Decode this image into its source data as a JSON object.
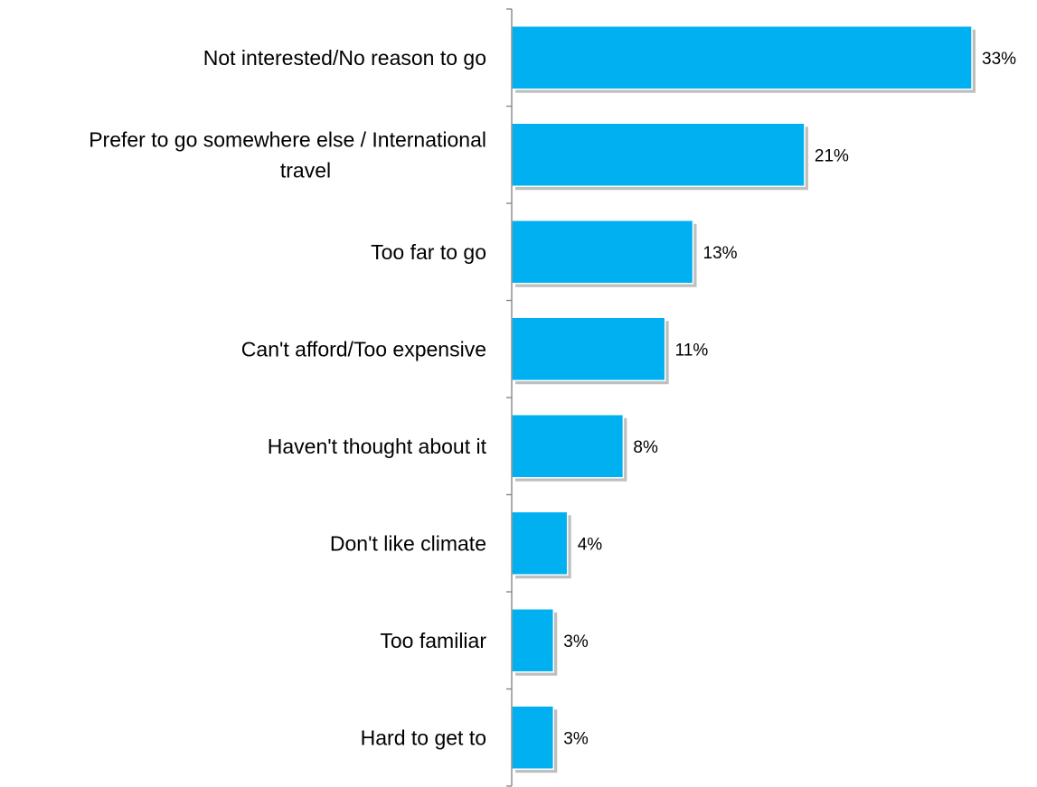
{
  "chart_data": {
    "type": "bar",
    "orientation": "horizontal",
    "categories": [
      "Not interested/No reason to go",
      "Prefer to go somewhere else / International travel",
      "Too far to go",
      "Can't afford/Too expensive",
      "Haven't thought about it",
      "Don't like climate",
      "Too familiar",
      "Hard to get to"
    ],
    "category_lines": [
      [
        "Not interested/No reason to go"
      ],
      [
        "Prefer to go somewhere else / International",
        "travel"
      ],
      [
        "Too far to go"
      ],
      [
        "Can't afford/Too expensive"
      ],
      [
        "Haven't thought about it"
      ],
      [
        "Don't like climate"
      ],
      [
        "Too familiar"
      ],
      [
        "Hard to get to"
      ]
    ],
    "values": [
      33,
      21,
      13,
      11,
      8,
      4,
      3,
      3
    ],
    "value_labels": [
      "33%",
      "21%",
      "13%",
      "11%",
      "8%",
      "4%",
      "3%",
      "3%"
    ],
    "unit": "%",
    "xlim": [
      0,
      35
    ],
    "grid": false,
    "legend": "none",
    "colors": {
      "bar": "#00B0F0",
      "axis": "#808080",
      "shadow": "#BFBFBF"
    }
  }
}
